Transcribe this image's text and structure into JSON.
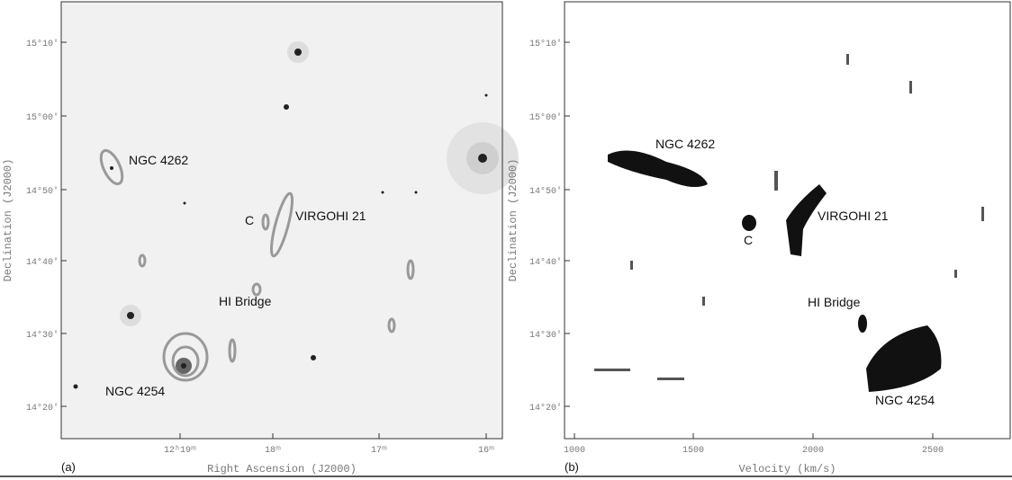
{
  "panels": [
    {
      "label": "(a)",
      "x_axis_title": "Right Ascension (J2000)",
      "y_axis_title": "Declination (J2000)",
      "y_ticks": [
        "15°10'",
        "15°00'",
        "14°50'",
        "14°40'",
        "14°30'",
        "14°20'"
      ],
      "x_ticks": [
        "12ʰ19ᵐ",
        "18ᵐ",
        "17ᵐ",
        "16ᵐ"
      ],
      "annotations": [
        "NGC 4262",
        "C",
        "VIRGOHI 21",
        "HI Bridge",
        "NGC 4254"
      ]
    },
    {
      "label": "(b)",
      "x_axis_title": "Velocity (km/s)",
      "y_axis_title": "Declination (J2000)",
      "y_ticks": [
        "15°10'",
        "15°00'",
        "14°50'",
        "14°40'",
        "14°30'",
        "14°20'"
      ],
      "x_ticks": [
        "1000",
        "1500",
        "2000",
        "2500"
      ],
      "annotations": [
        "NGC 4262",
        "VIRGOHI 21",
        "C",
        "HI Bridge",
        "NGC 4254"
      ]
    }
  ]
}
